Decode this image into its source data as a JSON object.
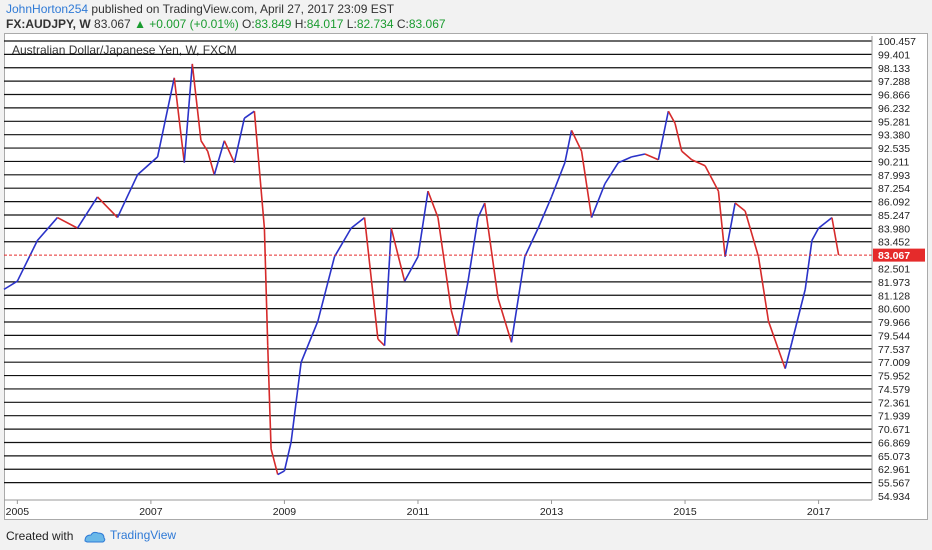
{
  "header": {
    "author": "JohnHorton254",
    "published": "published on TradingView.com, April 27, 2017 23:09 EST",
    "symbol": "FX:AUDJPY, W",
    "last": "83.067",
    "change": "▲ +0.007 (+0.01%)",
    "o_label": "O:",
    "o_value": "83.849",
    "h_label": "H:",
    "h_value": "84.017",
    "l_label": "L:",
    "l_value": "82.734",
    "c_label": "C:",
    "c_value": "83.067"
  },
  "chart_data": {
    "type": "line",
    "title": "Australian Dollar/Japanese Yen, W, FXCM",
    "y_tick_labels": [
      "100.457",
      "99.401",
      "98.133",
      "97.288",
      "96.866",
      "96.232",
      "95.281",
      "93.380",
      "92.535",
      "90.211",
      "87.993",
      "87.254",
      "86.092",
      "85.247",
      "83.980",
      "83.452",
      "83.067",
      "82.501",
      "81.973",
      "81.128",
      "80.600",
      "79.966",
      "79.544",
      "77.537",
      "77.009",
      "75.952",
      "74.579",
      "72.361",
      "71.939",
      "70.671",
      "66.869",
      "65.073",
      "62.961",
      "55.567",
      "54.934"
    ],
    "horizontal_levels": [
      100.457,
      99.401,
      98.133,
      97.288,
      96.866,
      96.232,
      95.281,
      93.38,
      92.535,
      90.211,
      87.993,
      87.254,
      86.092,
      85.247,
      83.98,
      83.452,
      82.501,
      81.973,
      81.128,
      80.6,
      79.966,
      79.544,
      77.537,
      77.009,
      75.952,
      74.579,
      72.361,
      71.939,
      70.671,
      66.869,
      65.073,
      62.961,
      55.567
    ],
    "current_price": 83.067,
    "x_tick_labels": [
      "2005",
      "2007",
      "2009",
      "2011",
      "2013",
      "2015",
      "2017"
    ],
    "x_tick_years": [
      2005,
      2007,
      2009,
      2011,
      2013,
      2015,
      2017
    ],
    "xlim": [
      2004.8,
      2017.8
    ],
    "series": [
      {
        "x": [
          2004.8,
          2005.0,
          2005.3,
          2005.6,
          2005.9,
          2006.2,
          2006.5,
          2006.8,
          2007.1,
          2007.35,
          2007.5,
          2007.62,
          2007.75,
          2007.85,
          2007.95,
          2008.1,
          2008.25,
          2008.4,
          2008.55,
          2008.7,
          2008.75,
          2008.8,
          2008.9,
          2009.0,
          2009.1,
          2009.25,
          2009.5,
          2009.75,
          2010.0,
          2010.2,
          2010.4,
          2010.5,
          2010.6,
          2010.8,
          2011.0,
          2011.15,
          2011.3,
          2011.5,
          2011.6,
          2011.75,
          2011.9,
          2012.0,
          2012.2,
          2012.4,
          2012.6,
          2012.8,
          2013.0,
          2013.2,
          2013.3,
          2013.45,
          2013.6,
          2013.8,
          2014.0,
          2014.2,
          2014.4,
          2014.6,
          2014.75,
          2014.85,
          2014.95,
          2015.1,
          2015.3,
          2015.5,
          2015.6,
          2015.75,
          2015.9,
          2016.1,
          2016.25,
          2016.4,
          2016.5,
          2016.6,
          2016.8,
          2016.9,
          2017.0,
          2017.2,
          2017.3
        ],
        "values": [
          81.5,
          82.0,
          83.5,
          85.0,
          84.0,
          86.5,
          85.0,
          88.0,
          91.0,
          97.5,
          90.0,
          98.5,
          93.0,
          92.0,
          88.0,
          93.0,
          90.0,
          95.5,
          96.0,
          84.0,
          78.0,
          66.0,
          60.0,
          62.0,
          67.0,
          77.0,
          80.0,
          83.0,
          84.0,
          85.0,
          79.0,
          78.0,
          84.0,
          82.0,
          83.0,
          87.0,
          85.0,
          80.5,
          79.5,
          82.0,
          85.0,
          86.0,
          81.0,
          78.5,
          83.0,
          84.0,
          86.5,
          90.0,
          94.0,
          92.0,
          85.0,
          87.5,
          90.0,
          91.0,
          91.5,
          90.5,
          96.0,
          95.0,
          92.0,
          90.5,
          89.5,
          87.0,
          83.0,
          86.0,
          85.5,
          83.0,
          80.0,
          77.5,
          76.5,
          78.5,
          81.5,
          83.5,
          84.0,
          85.0,
          83.067
        ]
      }
    ]
  },
  "footer": {
    "created_with": "Created with",
    "brand": "TradingView"
  },
  "colors": {
    "line": "#111111",
    "price_line": "#e52b2b",
    "price_label_bg": "#e52b2b",
    "up": "#2b33c9",
    "down": "#d62b2b",
    "brand": "#2f7ad6",
    "green": "#1a9b2f"
  }
}
